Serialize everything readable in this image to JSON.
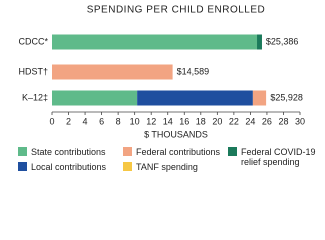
{
  "chart_data": {
    "type": "stacked-bar-horizontal",
    "title": "SPENDING PER CHILD ENROLLED",
    "x_label": "$ THOUSANDS",
    "categories": [
      "CDCC*",
      "HDST†",
      "K–12‡"
    ],
    "series": [
      {
        "name": "State contributions",
        "color": "#5fba8a",
        "values": [
          24.8,
          0,
          10.3
        ]
      },
      {
        "name": "Local contributions",
        "color": "#1f4f9f",
        "values": [
          0,
          0,
          14.0
        ]
      },
      {
        "name": "Federal contributions",
        "color": "#f2a482",
        "values": [
          0,
          14.589,
          1.6
        ]
      },
      {
        "name": "TANF spending",
        "color": "#f6c744",
        "values": [
          0,
          0,
          0
        ]
      },
      {
        "name": "Federal COVID-19 relief spending",
        "color": "#1b7a5b",
        "values": [
          0.6,
          0,
          0
        ]
      }
    ],
    "totals": {
      "values": [
        25.386,
        14.589,
        25.928
      ],
      "value_labels": [
        "$25,386",
        "$14,589",
        "$25,928"
      ]
    },
    "xlim": [
      0,
      30
    ],
    "xticks": [
      0,
      2,
      4,
      6,
      8,
      10,
      12,
      14,
      16,
      18,
      20,
      22,
      24,
      26,
      28,
      30
    ]
  }
}
